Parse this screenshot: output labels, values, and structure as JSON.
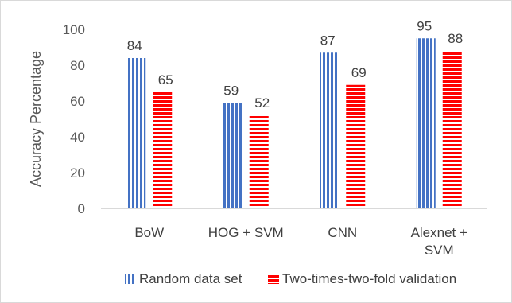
{
  "chart_data": {
    "type": "bar",
    "categories": [
      "BoW",
      "HOG + SVM",
      "CNN",
      "Alexnet + SVM"
    ],
    "category_lines": [
      [
        "BoW"
      ],
      [
        "HOG + SVM"
      ],
      [
        "CNN"
      ],
      [
        "Alexnet +",
        "SVM"
      ]
    ],
    "series": [
      {
        "name": "Random data set",
        "values": [
          84,
          59,
          87,
          95
        ],
        "color": "#4472c4",
        "pattern": "vertical-stripes"
      },
      {
        "name": "Two-times-two-fold validation",
        "values": [
          65,
          52,
          69,
          88
        ],
        "color": "#ff0000",
        "pattern": "horizontal-stripes"
      }
    ],
    "ylabel": "Accuracy Percentage",
    "ylim": [
      0,
      100
    ],
    "yticks": [
      0,
      20,
      40,
      60,
      80,
      100
    ],
    "grid": false,
    "legend_position": "bottom"
  }
}
